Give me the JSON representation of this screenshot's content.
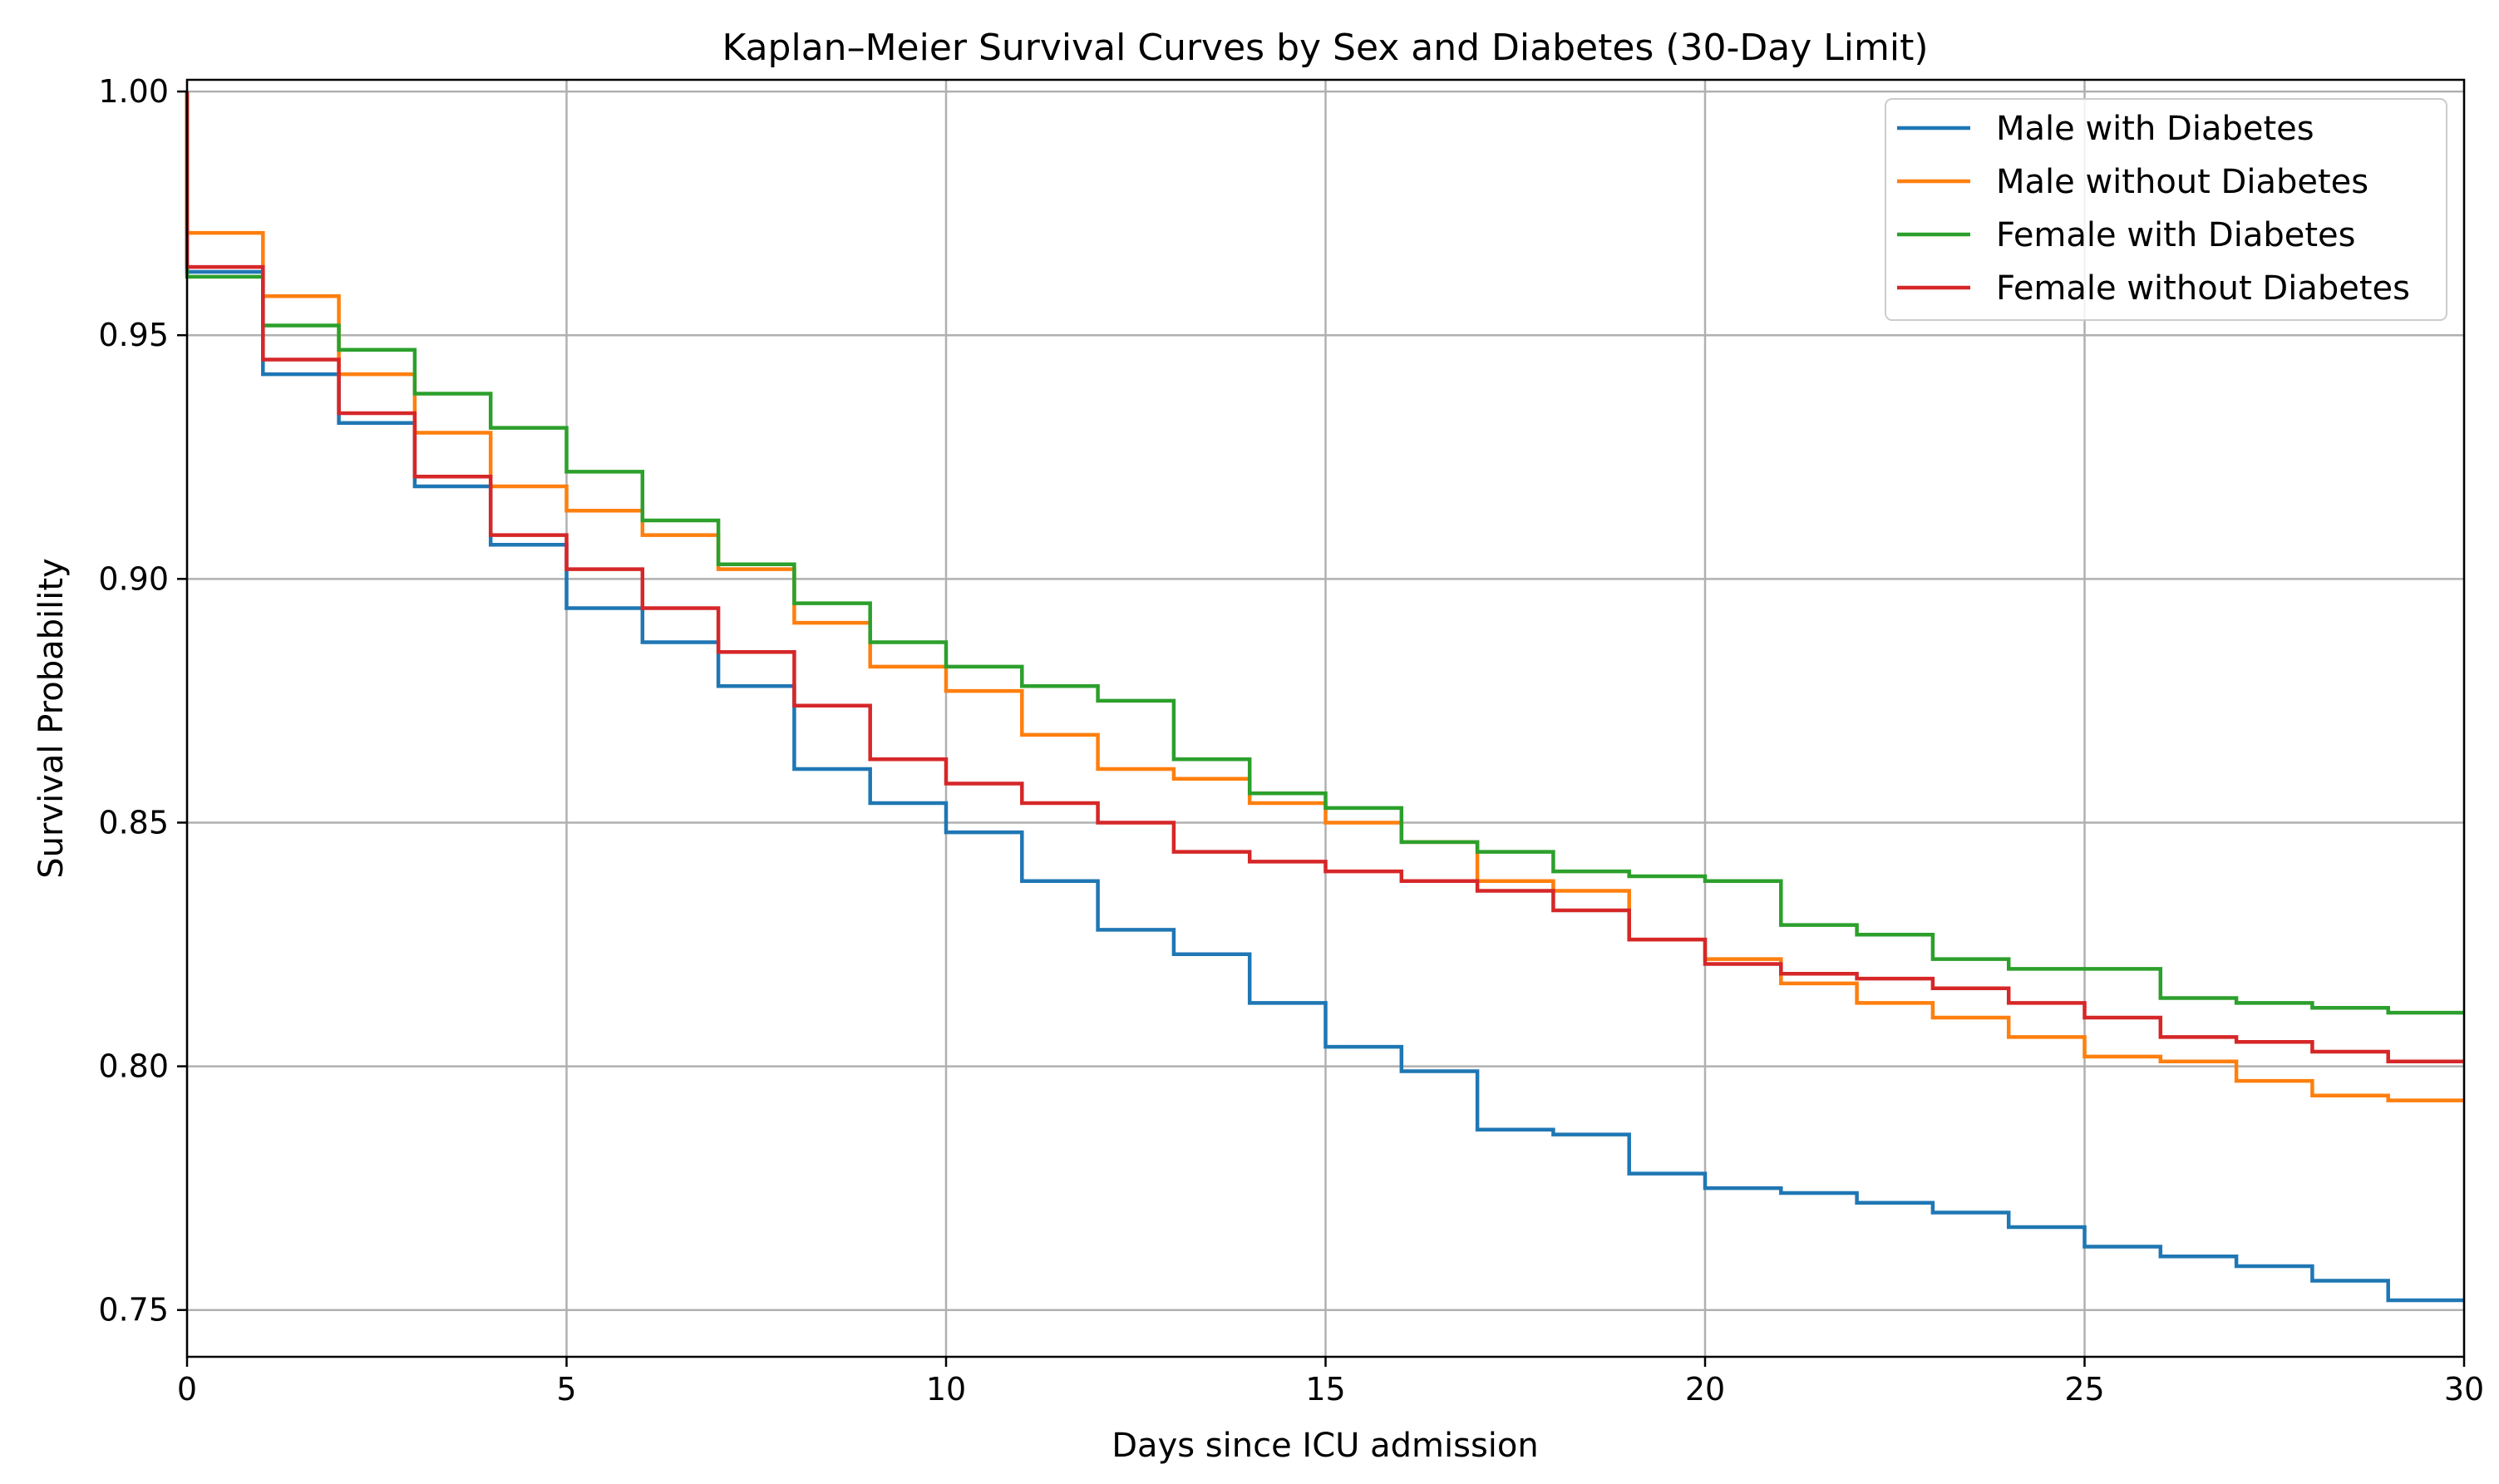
{
  "chart_data": {
    "type": "line",
    "step": "post",
    "title": "Kaplan–Meier Survival Curves by Sex and Diabetes (30-Day Limit)",
    "xlabel": "Days since ICU admission",
    "ylabel": "Survival Probability",
    "xlim": [
      0,
      30
    ],
    "ylim": [
      0.7404,
      1.0024
    ],
    "xticks": [
      0,
      5,
      10,
      15,
      20,
      25,
      30
    ],
    "xtick_labels": [
      "0",
      "5",
      "10",
      "15",
      "20",
      "25",
      "30"
    ],
    "yticks": [
      0.75,
      0.8,
      0.85,
      0.9,
      0.95,
      1.0
    ],
    "ytick_labels": [
      "0.75",
      "0.80",
      "0.85",
      "0.90",
      "0.95",
      "1.00"
    ],
    "grid": true,
    "legend_position": "top-right",
    "initial_survival": 1.0,
    "x": [
      0,
      1,
      2,
      3,
      4,
      5,
      6,
      7,
      8,
      9,
      10,
      11,
      12,
      13,
      14,
      15,
      16,
      17,
      18,
      19,
      20,
      21,
      22,
      23,
      24,
      25,
      26,
      27,
      28,
      29
    ],
    "series": [
      {
        "name": "Male with Diabetes",
        "color": "#1f77b4",
        "values": [
          0.963,
          0.942,
          0.932,
          0.919,
          0.907,
          0.894,
          0.887,
          0.878,
          0.861,
          0.854,
          0.848,
          0.838,
          0.828,
          0.823,
          0.813,
          0.804,
          0.799,
          0.787,
          0.786,
          0.778,
          0.775,
          0.774,
          0.772,
          0.77,
          0.767,
          0.763,
          0.761,
          0.759,
          0.756,
          0.752
        ]
      },
      {
        "name": "Male without Diabetes",
        "color": "#ff7f0e",
        "values": [
          0.971,
          0.958,
          0.942,
          0.93,
          0.919,
          0.914,
          0.909,
          0.902,
          0.891,
          0.882,
          0.877,
          0.868,
          0.861,
          0.859,
          0.854,
          0.85,
          0.846,
          0.838,
          0.836,
          0.826,
          0.822,
          0.817,
          0.813,
          0.81,
          0.806,
          0.802,
          0.801,
          0.797,
          0.794,
          0.793
        ]
      },
      {
        "name": "Female with Diabetes",
        "color": "#2ca02c",
        "values": [
          0.962,
          0.952,
          0.947,
          0.938,
          0.931,
          0.922,
          0.912,
          0.903,
          0.895,
          0.887,
          0.882,
          0.878,
          0.875,
          0.863,
          0.856,
          0.853,
          0.846,
          0.844,
          0.84,
          0.839,
          0.838,
          0.829,
          0.827,
          0.822,
          0.82,
          0.82,
          0.814,
          0.813,
          0.812,
          0.811
        ]
      },
      {
        "name": "Female without Diabetes",
        "color": "#d62728",
        "values": [
          0.964,
          0.945,
          0.934,
          0.921,
          0.909,
          0.902,
          0.894,
          0.885,
          0.874,
          0.863,
          0.858,
          0.854,
          0.85,
          0.844,
          0.842,
          0.84,
          0.838,
          0.836,
          0.832,
          0.826,
          0.821,
          0.819,
          0.818,
          0.816,
          0.813,
          0.81,
          0.806,
          0.805,
          0.803,
          0.801
        ]
      }
    ]
  }
}
